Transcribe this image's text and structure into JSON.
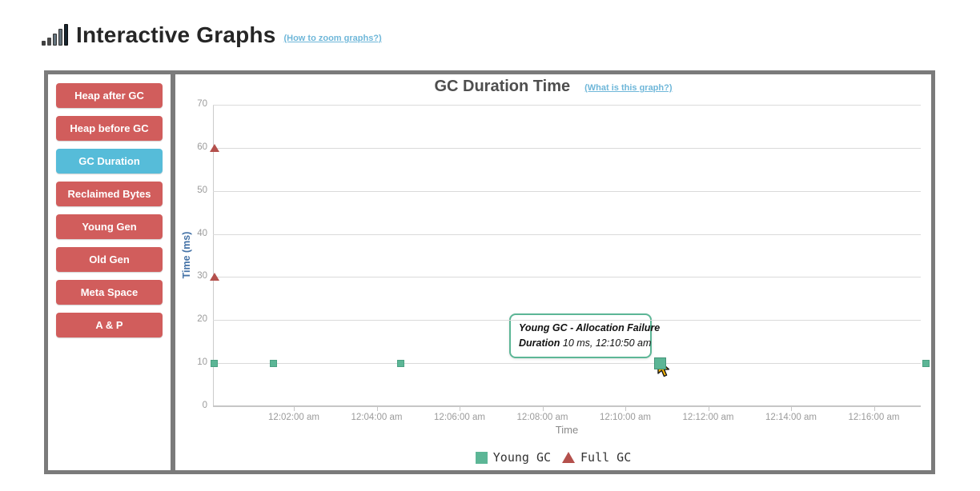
{
  "header": {
    "title": "Interactive Graphs",
    "help_link": "(How to zoom graphs?)"
  },
  "sidebar": {
    "buttons": [
      {
        "label": "Heap after GC",
        "active": false
      },
      {
        "label": "Heap before GC",
        "active": false
      },
      {
        "label": "GC Duration",
        "active": true
      },
      {
        "label": "Reclaimed Bytes",
        "active": false
      },
      {
        "label": "Young Gen",
        "active": false
      },
      {
        "label": "Old Gen",
        "active": false
      },
      {
        "label": "Meta Space",
        "active": false
      },
      {
        "label": "A & P",
        "active": false
      }
    ]
  },
  "chart": {
    "title": "GC Duration Time",
    "help_link": "(What is this graph?)",
    "tooltip": {
      "title": "Young GC - Allocation Failure",
      "label": "Duration",
      "value": "10 ms, 12:10:50 am"
    }
  },
  "colors": {
    "button_red": "#d15d5c",
    "button_active_blue": "#56bcd9",
    "young_gc_green": "#5cb696",
    "full_gc_red": "#b4504c",
    "link_blue": "#6fb7d9",
    "panel_border_gray": "#7b7b7b",
    "axis_text_gray": "#9b9b9b",
    "y_axis_title_blue": "#4573a7"
  },
  "chart_data": {
    "type": "scatter",
    "title": "GC Duration Time",
    "xlabel": "Time",
    "ylabel": "Time (ms)",
    "ylim": [
      0,
      70
    ],
    "yticks": [
      0,
      10,
      20,
      30,
      40,
      50,
      60,
      70
    ],
    "grid": true,
    "x_axis": {
      "start_seconds": 0,
      "end_seconds": 1030,
      "ticks": [
        {
          "seconds": 120,
          "label": "12:02:00 am"
        },
        {
          "seconds": 240,
          "label": "12:04:00 am"
        },
        {
          "seconds": 360,
          "label": "12:06:00 am"
        },
        {
          "seconds": 480,
          "label": "12:08:00 am"
        },
        {
          "seconds": 600,
          "label": "12:10:00 am"
        },
        {
          "seconds": 720,
          "label": "12:12:00 am"
        },
        {
          "seconds": 840,
          "label": "12:14:00 am"
        },
        {
          "seconds": 960,
          "label": "12:16:00 am"
        }
      ]
    },
    "series": [
      {
        "name": "Young GC",
        "marker": "square",
        "color": "#5cb696",
        "points": [
          {
            "time": "12:00:05 am",
            "seconds": 5,
            "value": 10
          },
          {
            "time": "12:01:30 am",
            "seconds": 90,
            "value": 10
          },
          {
            "time": "12:04:35 am",
            "seconds": 275,
            "value": 10
          },
          {
            "time": "12:10:50 am",
            "seconds": 650,
            "value": 10,
            "hovered": true
          },
          {
            "time": "12:17:15 am",
            "seconds": 1035,
            "value": 10
          }
        ]
      },
      {
        "name": "Full GC",
        "marker": "triangle",
        "color": "#b4504c",
        "points": [
          {
            "time": "12:00:05 am",
            "seconds": 5,
            "value": 60
          },
          {
            "time": "12:00:05 am",
            "seconds": 5,
            "value": 30
          }
        ]
      }
    ],
    "legend": {
      "position": "bottom",
      "items": [
        "Young GC",
        "Full GC"
      ]
    }
  }
}
